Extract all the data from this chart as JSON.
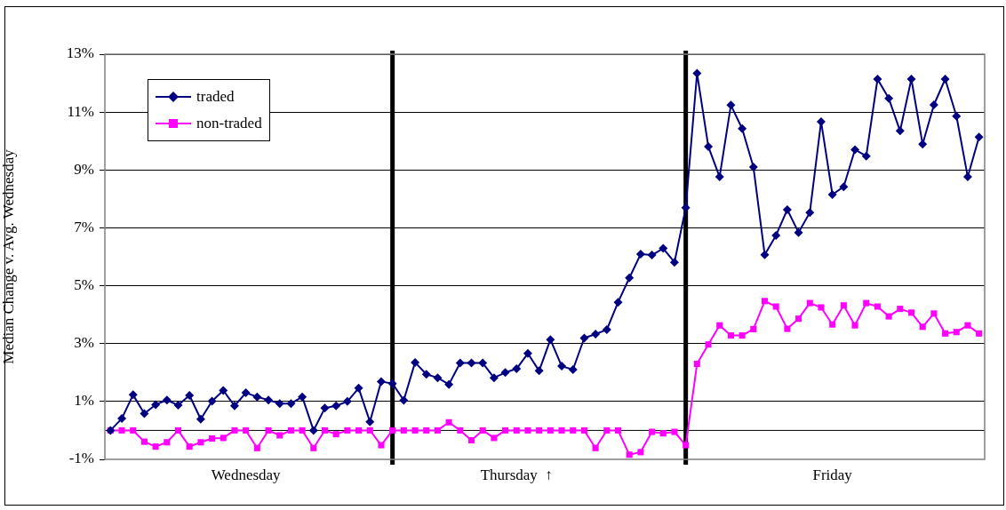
{
  "chart_data": {
    "type": "line",
    "ylabel": "Median Change v. Avg. Wednesday",
    "categories": [
      null,
      null,
      null,
      null,
      null,
      null,
      null,
      null,
      null,
      null,
      null,
      null,
      "Wednesday",
      null,
      null,
      null,
      null,
      null,
      null,
      null,
      null,
      null,
      null,
      null,
      null,
      null,
      null,
      null,
      null,
      null,
      null,
      null,
      null,
      null,
      null,
      null,
      "Thursday  ↑",
      null,
      null,
      null,
      null,
      null,
      null,
      null,
      null,
      null,
      null,
      null,
      null,
      null,
      null,
      null,
      null,
      null,
      null,
      null,
      null,
      null,
      null,
      null,
      null,
      null,
      null,
      null,
      "Friday",
      null,
      null,
      null,
      null,
      null,
      null,
      null,
      null,
      null,
      null,
      null,
      null,
      null
    ],
    "series": [
      {
        "name": "traded",
        "color": "#000080",
        "marker": "diamond",
        "values": [
          0,
          0.41,
          1.23,
          0.58,
          0.89,
          1.05,
          0.87,
          1.21,
          0.39,
          1.01,
          1.38,
          0.85,
          1.3,
          1.16,
          1.05,
          0.93,
          0.93,
          1.16,
          0,
          0.77,
          0.85,
          1,
          1.46,
          0.3,
          1.69,
          1.62,
          1.04,
          2.35,
          1.94,
          1.82,
          1.59,
          2.33,
          2.33,
          2.33,
          1.82,
          2,
          2.13,
          2.66,
          2.06,
          3.14,
          2.22,
          2.1,
          3.19,
          3.33,
          3.48,
          4.43,
          5.27,
          6.09,
          6.06,
          6.29,
          5.81,
          7.7,
          12.34,
          9.81,
          8.76,
          11.24,
          10.43,
          9.1,
          6.07,
          6.74,
          7.63,
          6.84,
          7.53,
          10.67,
          8.15,
          8.42,
          9.7,
          9.48,
          12.14,
          11.47,
          10.35,
          12.14,
          9.89,
          11.25,
          12.14,
          10.86,
          8.76,
          10.14
        ]
      },
      {
        "name": "non-traded",
        "color": "#ff00ff",
        "marker": "square",
        "values": [
          0,
          0,
          0,
          -0.39,
          -0.56,
          -0.41,
          0,
          -0.56,
          -0.41,
          -0.28,
          -0.26,
          0,
          0,
          -0.61,
          0,
          -0.17,
          0,
          0,
          -0.61,
          0,
          -0.13,
          0,
          0,
          0,
          -0.51,
          0,
          0,
          0,
          0,
          0,
          0.28,
          0,
          -0.34,
          0,
          -0.26,
          0,
          0,
          0,
          0,
          0,
          0,
          0,
          0,
          -0.61,
          0,
          0,
          -0.84,
          -0.75,
          -0.05,
          -0.1,
          -0.05,
          -0.51,
          2.3,
          2.97,
          3.63,
          3.28,
          3.28,
          3.5,
          4.47,
          4.28,
          3.51,
          3.86,
          4.4,
          4.25,
          3.66,
          4.32,
          3.63,
          4.4,
          4.28,
          3.94,
          4.2,
          4.07,
          3.58,
          4.04,
          3.35,
          3.4,
          3.63,
          3.35
        ]
      }
    ],
    "ylim": [
      -1,
      13
    ],
    "yticks": [
      {
        "value": -1,
        "label": "-1%"
      },
      {
        "value": 1,
        "label": "1%"
      },
      {
        "value": 3,
        "label": "3%"
      },
      {
        "value": 5,
        "label": "5%"
      },
      {
        "value": 7,
        "label": "7%"
      },
      {
        "value": 9,
        "label": "9%"
      },
      {
        "value": 11,
        "label": "11%"
      },
      {
        "value": 13,
        "label": "13%"
      }
    ],
    "ref_lines": [
      {
        "axis": "y",
        "value": 0,
        "color": "#000000"
      }
    ],
    "grid": "y",
    "legend": "top left",
    "line_style": "solid"
  }
}
